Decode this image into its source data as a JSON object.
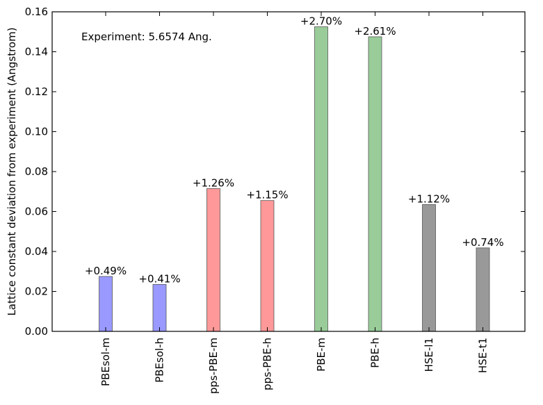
{
  "chart_data": {
    "type": "bar",
    "ylabel": "Lattice constant deviation from experiment (Angstrom)",
    "xlabel": "",
    "title": "",
    "annotation": "Experiment: 5.6574 Ang.",
    "ylim": [
      0,
      0.16
    ],
    "yticks": [
      0.0,
      0.02,
      0.04,
      0.06,
      0.08,
      0.1,
      0.12,
      0.14,
      0.16
    ],
    "ytick_labels": [
      "0.00",
      "0.02",
      "0.04",
      "0.06",
      "0.08",
      "0.10",
      "0.12",
      "0.14",
      "0.16"
    ],
    "grid": false,
    "categories": [
      "PBEsol-m",
      "PBEsol-h",
      "pps-PBE-m",
      "pps-PBE-h",
      "PBE-m",
      "PBE-h",
      "HSE-l1",
      "HSE-t1"
    ],
    "values": [
      0.0275,
      0.0235,
      0.0715,
      0.0655,
      0.1525,
      0.1475,
      0.0635,
      0.0418
    ],
    "bar_labels": [
      "+0.49%",
      "+0.41%",
      "+1.26%",
      "+1.15%",
      "+2.70%",
      "+2.61%",
      "+1.12%",
      "+0.74%"
    ],
    "colors": [
      "#9999ff",
      "#9999ff",
      "#ff9999",
      "#ff9999",
      "#99cc99",
      "#99cc99",
      "#999999",
      "#999999"
    ]
  }
}
